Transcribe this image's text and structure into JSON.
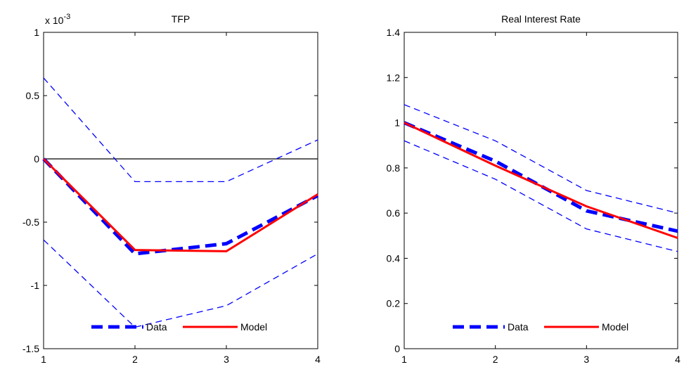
{
  "chart_data": [
    {
      "type": "line",
      "title": "TFP",
      "multiplier_label": "x 10",
      "multiplier_exponent": "-3",
      "x": [
        1,
        2,
        3,
        4
      ],
      "xlim": [
        1,
        4
      ],
      "ylim": [
        -1.5,
        1
      ],
      "xticks": [
        "1",
        "2",
        "3",
        "4"
      ],
      "yticks": [
        {
          "value": 1,
          "label": "1"
        },
        {
          "value": 0.5,
          "label": "0.5"
        },
        {
          "value": 0,
          "label": "0"
        },
        {
          "value": -0.5,
          "label": "-0.5"
        },
        {
          "value": -1,
          "label": "-1"
        },
        {
          "value": -1.5,
          "label": "-1.5"
        }
      ],
      "reference_line": 0,
      "bands": {
        "upper": [
          0.64,
          -0.18,
          -0.18,
          0.15
        ],
        "lower": [
          -0.64,
          -1.33,
          -1.16,
          -0.75
        ],
        "color": "#0000ff"
      },
      "series": [
        {
          "name": "Data",
          "values": [
            0.0,
            -0.75,
            -0.67,
            -0.29
          ],
          "color": "#0000ff",
          "style": "dashed"
        },
        {
          "name": "Model",
          "values": [
            0.0,
            -0.72,
            -0.73,
            -0.28
          ],
          "color": "#ff0000",
          "style": "solid"
        }
      ],
      "legend": "bottom"
    },
    {
      "type": "line",
      "title": "Real Interest Rate",
      "x": [
        1,
        2,
        3,
        4
      ],
      "xlim": [
        1,
        4
      ],
      "ylim": [
        0,
        1.4
      ],
      "xticks": [
        "1",
        "2",
        "3",
        "4"
      ],
      "yticks": [
        {
          "value": 1.4,
          "label": "1.4"
        },
        {
          "value": 1.2,
          "label": "1.2"
        },
        {
          "value": 1,
          "label": "1"
        },
        {
          "value": 0.8,
          "label": "0.8"
        },
        {
          "value": 0.6,
          "label": "0.6"
        },
        {
          "value": 0.4,
          "label": "0.4"
        },
        {
          "value": 0.2,
          "label": "0.2"
        },
        {
          "value": 0,
          "label": "0"
        }
      ],
      "bands": {
        "upper": [
          1.08,
          0.92,
          0.7,
          0.6
        ],
        "lower": [
          0.92,
          0.75,
          0.53,
          0.43
        ],
        "color": "#0000ff"
      },
      "series": [
        {
          "name": "Data",
          "values": [
            1.0,
            0.83,
            0.61,
            0.52
          ],
          "color": "#0000ff",
          "style": "dashed"
        },
        {
          "name": "Model",
          "values": [
            1.0,
            0.81,
            0.63,
            0.49
          ],
          "color": "#ff0000",
          "style": "solid"
        }
      ],
      "legend": "bottom"
    }
  ]
}
